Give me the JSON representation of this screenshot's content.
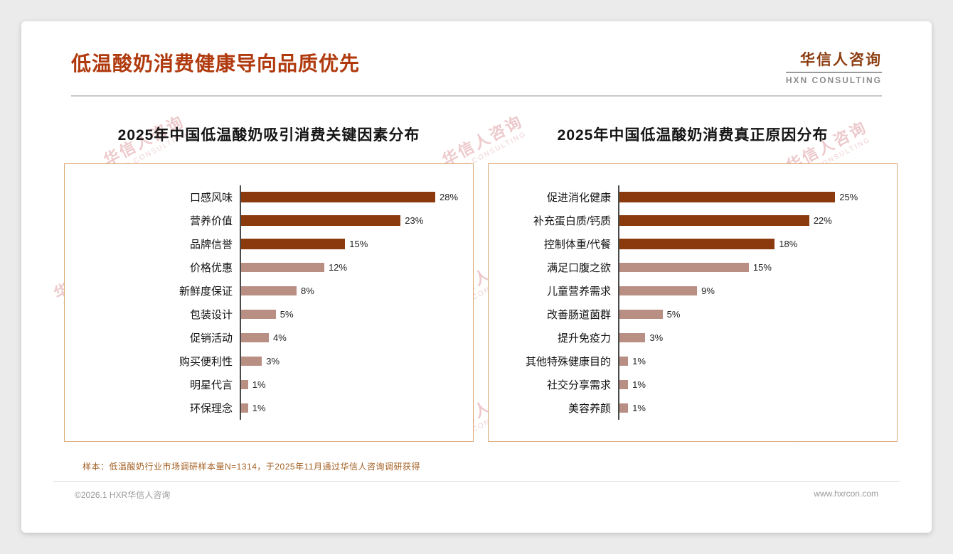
{
  "page": {
    "title": "低温酸奶消费健康导向品质优先",
    "logo": {
      "name": "华信人咨询",
      "sub": "HXN CONSULTING"
    },
    "footnote": "样本：低温酸奶行业市场调研样本量N=1314，于2025年11月通过华信人咨询调研获得",
    "copyright": "©2026.1 HXR华信人咨询",
    "website": "www.hxrcon.com"
  },
  "watermark": {
    "line1": "华信人咨询",
    "line2": "HXN CONSULTING"
  },
  "colors": {
    "title": "#B03A0E",
    "bar_primary": "#8B3A0D",
    "bar_secondary": "#B98F84",
    "panel_border": "#DCA878",
    "footnote": "#A35F22"
  },
  "chart_data": [
    {
      "type": "bar",
      "orientation": "horizontal",
      "title": "2025年中国低温酸奶吸引消费关键因素分布",
      "categories": [
        "口感风味",
        "营养价值",
        "品牌信誉",
        "价格优惠",
        "新鲜度保证",
        "包装设计",
        "促销活动",
        "购买便利性",
        "明星代言",
        "环保理念"
      ],
      "values": [
        28,
        23,
        15,
        12,
        8,
        5,
        4,
        3,
        1,
        1
      ],
      "unit": "%",
      "highlight_count": 3,
      "xlim": [
        0,
        32
      ],
      "legend": "none",
      "grid": "off"
    },
    {
      "type": "bar",
      "orientation": "horizontal",
      "title": "2025年中国低温酸奶消费真正原因分布",
      "categories": [
        "促进消化健康",
        "补充蛋白质/钙质",
        "控制体重/代餐",
        "满足口腹之欲",
        "儿童营养需求",
        "改善肠道菌群",
        "提升免疫力",
        "其他特殊健康目的",
        "社交分享需求",
        "美容养颜"
      ],
      "values": [
        25,
        22,
        18,
        15,
        9,
        5,
        3,
        1,
        1,
        1
      ],
      "unit": "%",
      "highlight_count": 3,
      "xlim": [
        0,
        31
      ],
      "legend": "none",
      "grid": "off"
    }
  ]
}
